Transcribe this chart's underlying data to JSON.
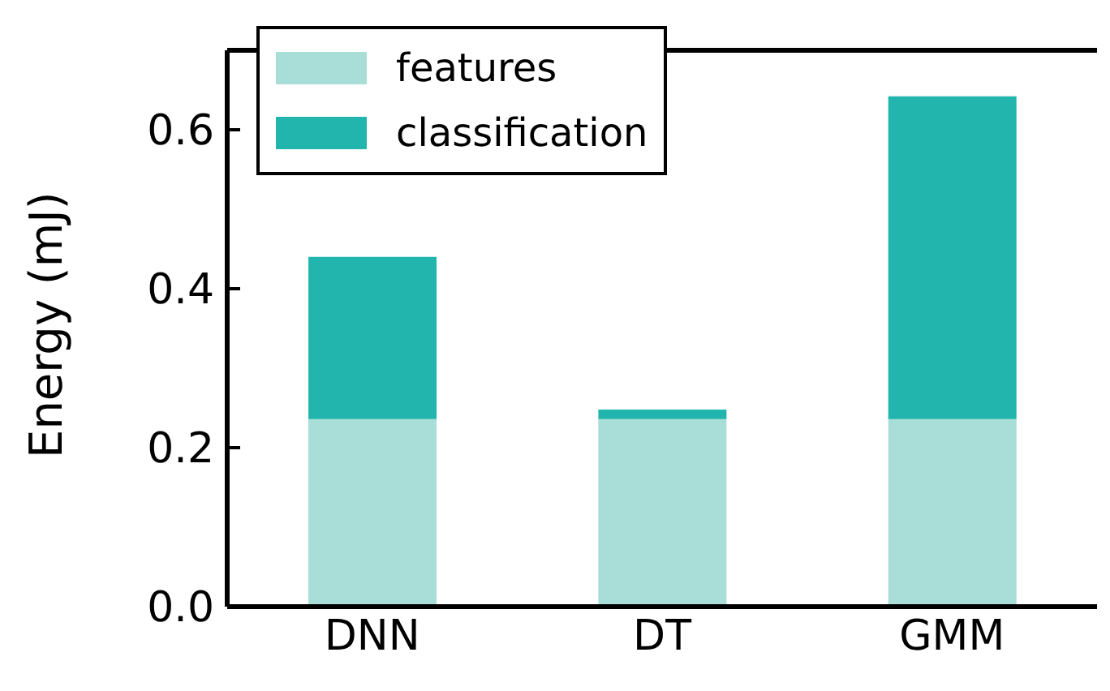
{
  "chart_data": {
    "type": "bar",
    "stacked": true,
    "ylabel": "Energy (mJ)",
    "categories": [
      "DNN",
      "DT",
      "GMM"
    ],
    "series": [
      {
        "name": "features",
        "color": "#a8ddd8",
        "values": [
          0.236,
          0.236,
          0.236
        ]
      },
      {
        "name": "classification",
        "color": "#22b5ad",
        "values": [
          0.204,
          0.012,
          0.406
        ]
      }
    ],
    "ylim": [
      0,
      0.7
    ],
    "yticks": [
      {
        "value": 0,
        "label": "0.0"
      },
      0.2,
      0.4,
      0.6
    ],
    "grid": false,
    "legend": "top left"
  }
}
